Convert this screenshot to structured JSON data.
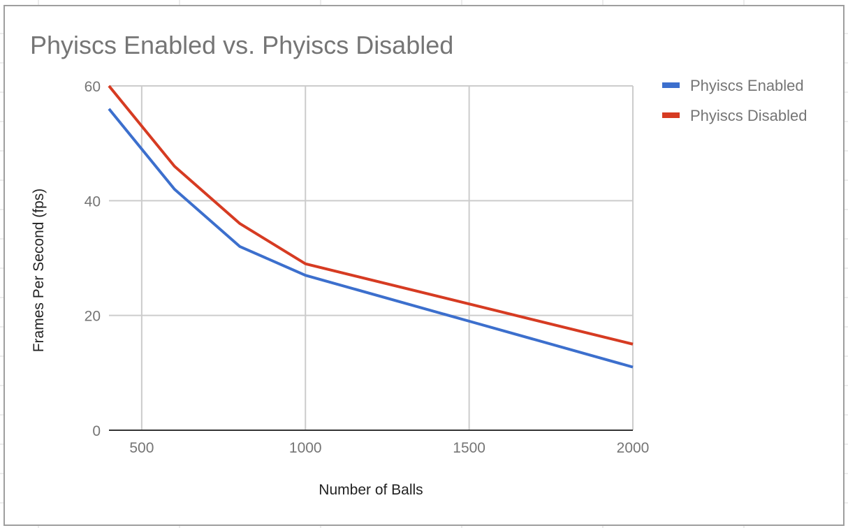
{
  "chart_data": {
    "type": "line",
    "title": "Phyiscs Enabled vs. Phyiscs Disabled",
    "xlabel": "Number of Balls",
    "ylabel": "Frames Per Second (fps)",
    "xlim": [
      400,
      2000
    ],
    "ylim": [
      0,
      60
    ],
    "x_ticks": [
      500,
      1000,
      1500,
      2000
    ],
    "y_ticks": [
      0,
      20,
      40,
      60
    ],
    "grid": true,
    "legend_position": "right",
    "x": [
      400,
      600,
      800,
      1000,
      1500,
      2000
    ],
    "series": [
      {
        "name": "Phyiscs Enabled",
        "color": "#3c6fcd",
        "values": [
          56,
          42,
          32,
          27,
          19,
          11
        ]
      },
      {
        "name": "Phyiscs Disabled",
        "color": "#d63b22",
        "values": [
          60,
          46,
          36,
          29,
          22,
          15
        ]
      }
    ]
  }
}
